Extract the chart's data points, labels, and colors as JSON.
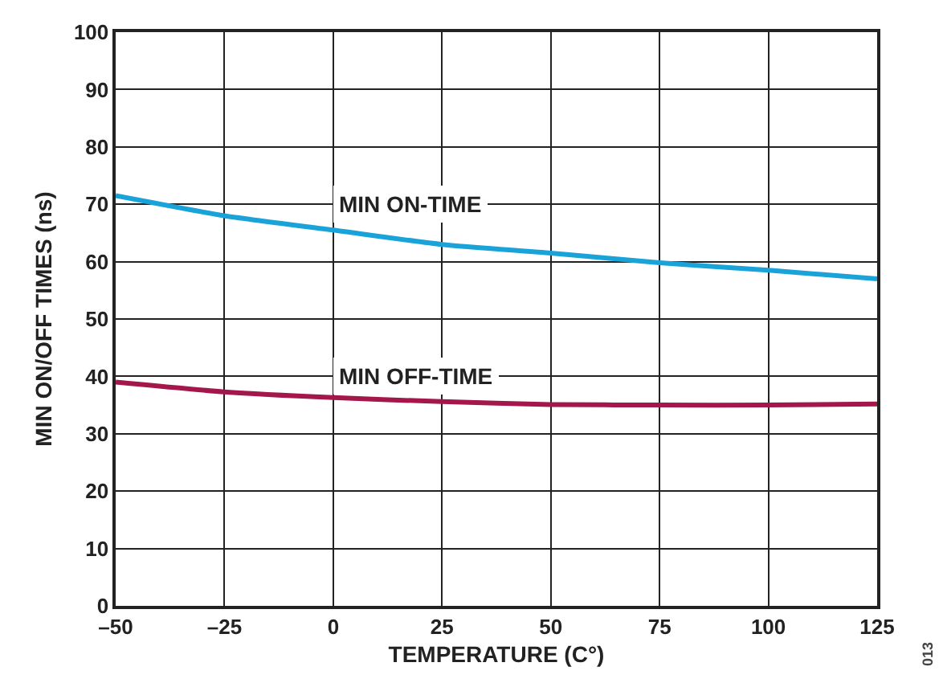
{
  "chart_data": {
    "type": "line",
    "xlabel": "TEMPERATURE (C°)",
    "ylabel": "MIN ON/OFF TIMES (ns)",
    "x": [
      -50,
      -25,
      0,
      25,
      50,
      75,
      100,
      125
    ],
    "series": [
      {
        "name": "MIN ON-TIME",
        "color": "#1aa3d9",
        "values": [
          71.5,
          68,
          65.5,
          63,
          61.5,
          59.8,
          58.5,
          57
        ]
      },
      {
        "name": "MIN OFF-TIME",
        "color": "#a3174a",
        "values": [
          39,
          37.3,
          36.3,
          35.6,
          35.1,
          35,
          35,
          35.2
        ]
      }
    ],
    "xlim": [
      -50,
      125
    ],
    "xticks": [
      {
        "value": -50,
        "label": "–50"
      },
      {
        "value": -25,
        "label": "–25"
      },
      0,
      25,
      50,
      75,
      100,
      125
    ],
    "ylim": [
      0,
      100
    ],
    "yticks": [
      0,
      10,
      20,
      30,
      40,
      50,
      60,
      70,
      80,
      90,
      100
    ],
    "grid": true,
    "legend": false,
    "marker": "none",
    "line_style": "solid",
    "annotations": [
      "013"
    ]
  }
}
